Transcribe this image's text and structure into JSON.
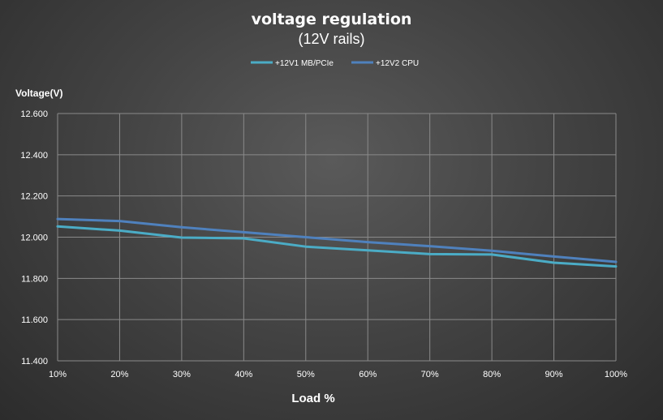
{
  "chart_data": {
    "type": "line",
    "title": "voltage regulation",
    "subtitle": "(12V rails)",
    "xlabel": "Load %",
    "ylabel": "Voltage(V)",
    "categories": [
      "10%",
      "20%",
      "30%",
      "40%",
      "50%",
      "60%",
      "70%",
      "80%",
      "90%",
      "100%"
    ],
    "ylim": [
      11.4,
      12.6
    ],
    "yticks": [
      "11.400",
      "11.600",
      "11.800",
      "12.000",
      "12.200",
      "12.400",
      "12.600"
    ],
    "grid": true,
    "legend_position": "top",
    "series": [
      {
        "name": "+12V1 MB/PCIe",
        "color": "#4bacc6",
        "values": [
          12.052,
          12.032,
          11.998,
          11.994,
          11.954,
          11.936,
          11.918,
          11.916,
          11.876,
          11.858
        ]
      },
      {
        "name": "+12V2 CPU",
        "color": "#4f81bd",
        "values": [
          12.088,
          12.078,
          12.048,
          12.024,
          12.0,
          11.976,
          11.956,
          11.934,
          11.906,
          11.88
        ]
      }
    ]
  }
}
